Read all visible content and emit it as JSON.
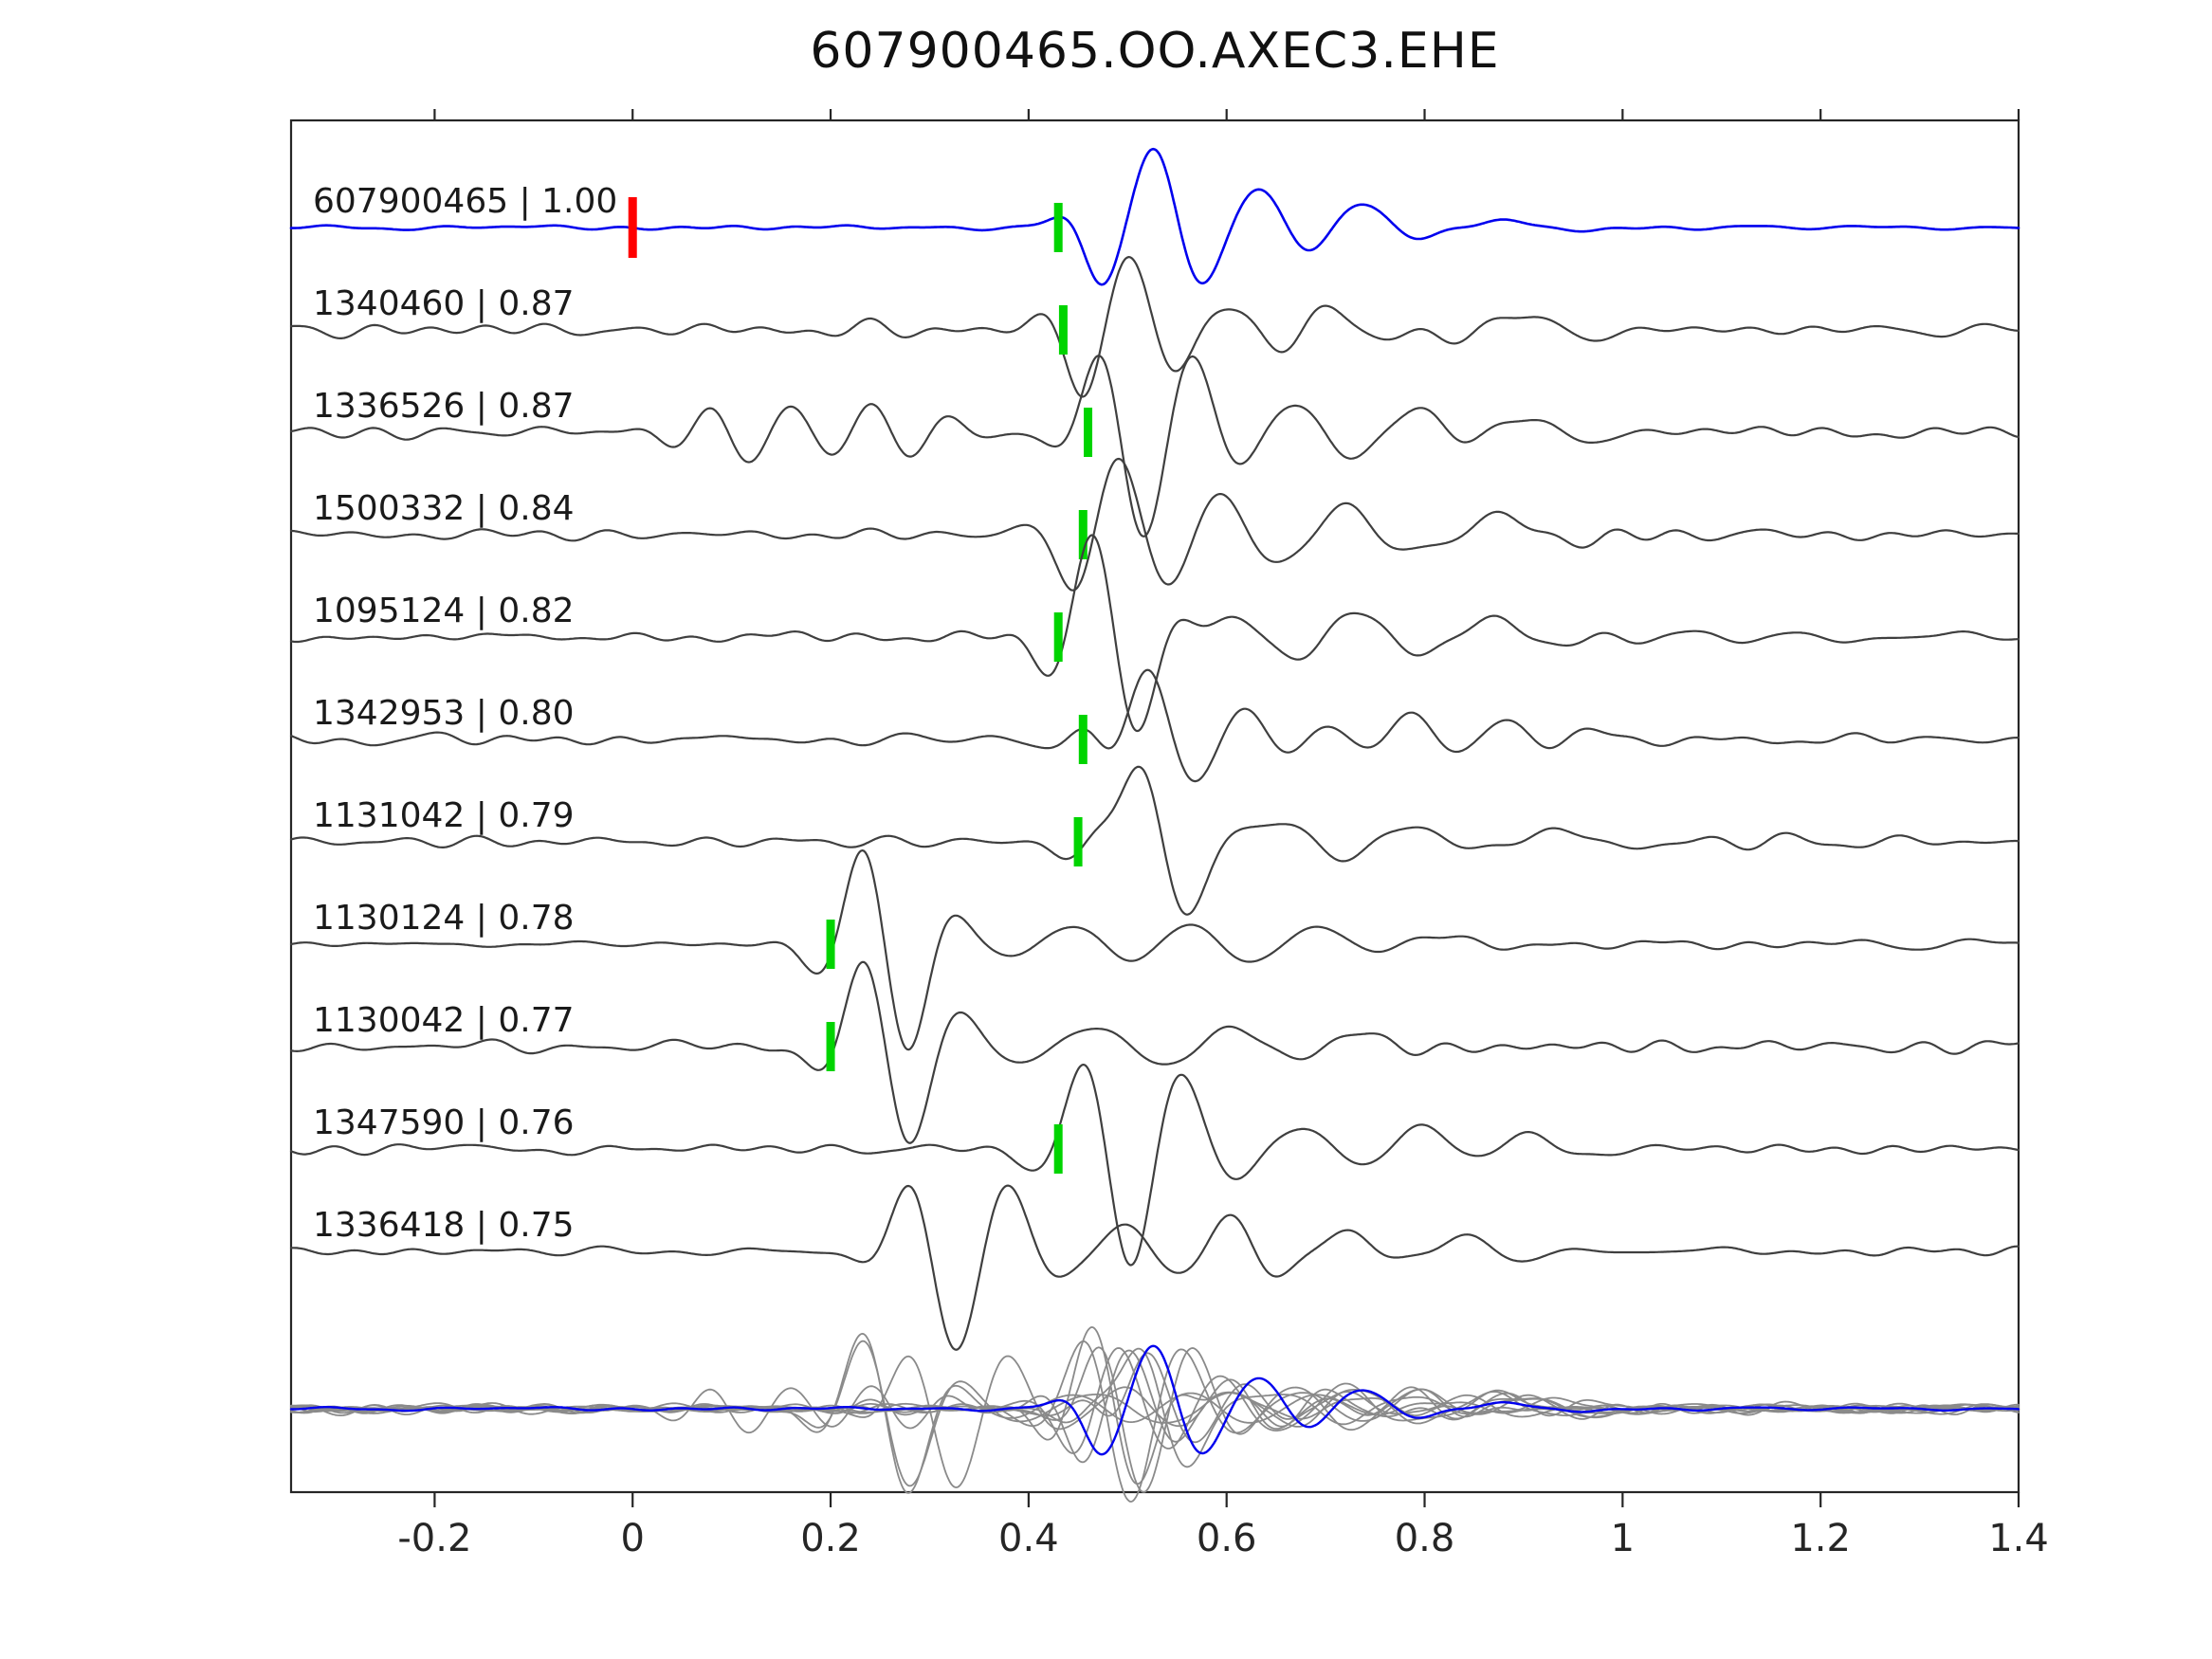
{
  "title": "607900465.OO.AXEC3.EHE",
  "chart_data": {
    "type": "line",
    "title": "607900465.OO.AXEC3.EHE",
    "xlabel": "",
    "ylabel": "",
    "xlim": [
      -0.345,
      1.4
    ],
    "grid": false,
    "legend": "none",
    "x_ticks": [
      {
        "v": -0.2,
        "label": "-0.2"
      },
      {
        "v": 0,
        "label": "0"
      },
      {
        "v": 0.2,
        "label": "0.2"
      },
      {
        "v": 0.4,
        "label": "0.4"
      },
      {
        "v": 0.6,
        "label": "0.6"
      },
      {
        "v": 0.8,
        "label": "0.8"
      },
      {
        "v": 1,
        "label": "1"
      },
      {
        "v": 1.2,
        "label": "1.2"
      },
      {
        "v": 1.4,
        "label": "1.4"
      }
    ],
    "colors": {
      "reference": "#0000ee",
      "match": "#3f3f3f",
      "overlay_match": "#8a8a8a",
      "pick_marker": "#00d400",
      "origin_marker": "#ff0000",
      "axis": "#262626",
      "label_text": "#1a1a1a"
    },
    "traces": [
      {
        "id": "607900465",
        "score": "1.00",
        "label": "607900465 | 1.00",
        "role": "reference",
        "pick_time": 0.43,
        "origin_time": 0.0,
        "noise_amp": 0.035,
        "seed": 101,
        "wavelets": [
          [
            0.47,
            -0.28,
            11,
            0.025
          ],
          [
            0.527,
            1.0,
            9.0,
            0.045
          ],
          [
            0.635,
            0.48,
            7.5,
            0.05
          ],
          [
            0.735,
            0.33,
            6.5,
            0.05
          ],
          [
            0.86,
            0.08,
            5,
            0.06
          ]
        ]
      },
      {
        "id": "1340460",
        "score": "0.87",
        "label": "1340460 | 0.87",
        "role": "match",
        "pick_time": 0.435,
        "origin_time": null,
        "noise_amp": 0.1,
        "seed": 202,
        "wavelets": [
          [
            0.455,
            -0.45,
            10,
            0.028
          ],
          [
            0.505,
            0.95,
            8.8,
            0.045
          ],
          [
            0.6,
            0.35,
            7.5,
            0.055
          ],
          [
            0.7,
            0.28,
            7,
            0.05
          ],
          [
            0.9,
            0.18,
            6,
            0.06
          ]
        ]
      },
      {
        "id": "1336526",
        "score": "0.87",
        "label": "1336526 | 0.87",
        "role": "match",
        "pick_time": 0.46,
        "origin_time": null,
        "noise_amp": 0.1,
        "seed": 303,
        "wavelets": [
          [
            0.08,
            0.26,
            12,
            0.05
          ],
          [
            0.16,
            0.3,
            11,
            0.05
          ],
          [
            0.24,
            0.26,
            10,
            0.05
          ],
          [
            0.32,
            0.18,
            10,
            0.04
          ],
          [
            0.475,
            0.62,
            9,
            0.032
          ],
          [
            0.517,
            -0.92,
            8.5,
            0.042
          ],
          [
            0.565,
            0.55,
            8,
            0.045
          ],
          [
            0.67,
            0.4,
            7,
            0.055
          ],
          [
            0.79,
            0.27,
            6.5,
            0.05
          ],
          [
            0.9,
            0.22,
            6,
            0.05
          ]
        ]
      },
      {
        "id": "1500332",
        "score": "0.84",
        "label": "1500332 | 0.84",
        "role": "match",
        "pick_time": 0.455,
        "origin_time": null,
        "noise_amp": 0.07,
        "seed": 404,
        "wavelets": [
          [
            0.452,
            -0.3,
            10,
            0.027
          ],
          [
            0.492,
            0.92,
            8.6,
            0.045
          ],
          [
            0.595,
            0.42,
            7,
            0.055
          ],
          [
            0.72,
            0.3,
            6,
            0.07
          ],
          [
            0.87,
            0.26,
            5.5,
            0.06
          ]
        ]
      },
      {
        "id": "1095124",
        "score": "0.82",
        "label": "1095124 | 0.82",
        "role": "match",
        "pick_time": 0.43,
        "origin_time": null,
        "noise_amp": 0.08,
        "seed": 505,
        "wavelets": [
          [
            0.465,
            0.95,
            9.8,
            0.038
          ],
          [
            0.508,
            -0.8,
            9,
            0.04
          ],
          [
            0.61,
            0.28,
            7,
            0.06
          ],
          [
            0.73,
            0.28,
            6,
            0.065
          ],
          [
            0.87,
            0.24,
            5.5,
            0.06
          ]
        ]
      },
      {
        "id": "1342953",
        "score": "0.80",
        "label": "1342953 | 0.80",
        "role": "match",
        "pick_time": 0.455,
        "origin_time": null,
        "noise_amp": 0.09,
        "seed": 606,
        "wavelets": [
          [
            0.463,
            0.55,
            9.5,
            0.03
          ],
          [
            0.52,
            0.92,
            8.3,
            0.042
          ],
          [
            0.625,
            0.42,
            7.5,
            0.045
          ],
          [
            0.705,
            0.4,
            7.5,
            0.045
          ],
          [
            0.785,
            0.45,
            7,
            0.05
          ],
          [
            0.875,
            0.35,
            6.5,
            0.05
          ],
          [
            0.96,
            0.2,
            6,
            0.05
          ]
        ]
      },
      {
        "id": "1131042",
        "score": "0.79",
        "label": "1131042 | 0.79",
        "role": "match",
        "pick_time": 0.45,
        "origin_time": null,
        "noise_amp": 0.065,
        "seed": 707,
        "wavelets": [
          [
            0.468,
            0.5,
            10,
            0.028
          ],
          [
            0.512,
            0.95,
            8.6,
            0.04
          ],
          [
            0.558,
            -0.55,
            8,
            0.038
          ],
          [
            0.66,
            0.22,
            6.5,
            0.06
          ],
          [
            0.79,
            0.2,
            5.5,
            0.065
          ],
          [
            0.92,
            0.16,
            5,
            0.06
          ]
        ]
      },
      {
        "id": "1130124",
        "score": "0.78",
        "label": "1130124 | 0.78",
        "role": "match",
        "pick_time": 0.2,
        "origin_time": null,
        "noise_amp": 0.07,
        "seed": 808,
        "wavelets": [
          [
            0.235,
            0.85,
            9,
            0.04
          ],
          [
            0.276,
            -1.0,
            8,
            0.04
          ],
          [
            0.45,
            0.24,
            6,
            0.08
          ],
          [
            0.56,
            0.28,
            6,
            0.07
          ],
          [
            0.69,
            0.22,
            5.5,
            0.065
          ],
          [
            0.81,
            0.16,
            5,
            0.06
          ]
        ]
      },
      {
        "id": "1130042",
        "score": "0.77",
        "label": "1130042 | 0.77",
        "role": "match",
        "pick_time": 0.2,
        "origin_time": null,
        "noise_amp": 0.08,
        "seed": 909,
        "wavelets": [
          [
            0.236,
            0.8,
            9,
            0.04
          ],
          [
            0.277,
            -1.0,
            8,
            0.042
          ],
          [
            0.47,
            0.26,
            6,
            0.08
          ],
          [
            0.6,
            0.22,
            5.5,
            0.07
          ],
          [
            0.73,
            0.17,
            5,
            0.06
          ]
        ]
      },
      {
        "id": "1347590",
        "score": "0.76",
        "label": "1347590 | 0.76",
        "role": "match",
        "pick_time": 0.43,
        "origin_time": null,
        "noise_amp": 0.07,
        "seed": 1010,
        "wavelets": [
          [
            0.458,
            0.78,
            9,
            0.038
          ],
          [
            0.503,
            -1.0,
            8,
            0.042
          ],
          [
            0.555,
            0.55,
            8,
            0.04
          ],
          [
            0.68,
            0.33,
            6.5,
            0.055
          ],
          [
            0.8,
            0.33,
            6,
            0.055
          ],
          [
            0.9,
            0.28,
            6,
            0.05
          ]
        ]
      },
      {
        "id": "1336418",
        "score": "0.75",
        "label": "1336418 | 0.75",
        "role": "match",
        "pick_time": null,
        "origin_time": null,
        "noise_amp": 0.07,
        "seed": 1111,
        "wavelets": [
          [
            0.285,
            0.55,
            8.5,
            0.038
          ],
          [
            0.325,
            -0.95,
            7.6,
            0.045
          ],
          [
            0.377,
            0.5,
            8,
            0.04
          ],
          [
            0.5,
            0.33,
            7,
            0.055
          ],
          [
            0.6,
            0.42,
            7,
            0.05
          ],
          [
            0.72,
            0.28,
            6,
            0.06
          ],
          [
            0.83,
            0.22,
            6,
            0.05
          ]
        ]
      }
    ],
    "overlay_row": {
      "description": "all matched traces overlaid in gray with reference trace on top in blue",
      "includes": "all",
      "top_trace": "607900465"
    }
  }
}
